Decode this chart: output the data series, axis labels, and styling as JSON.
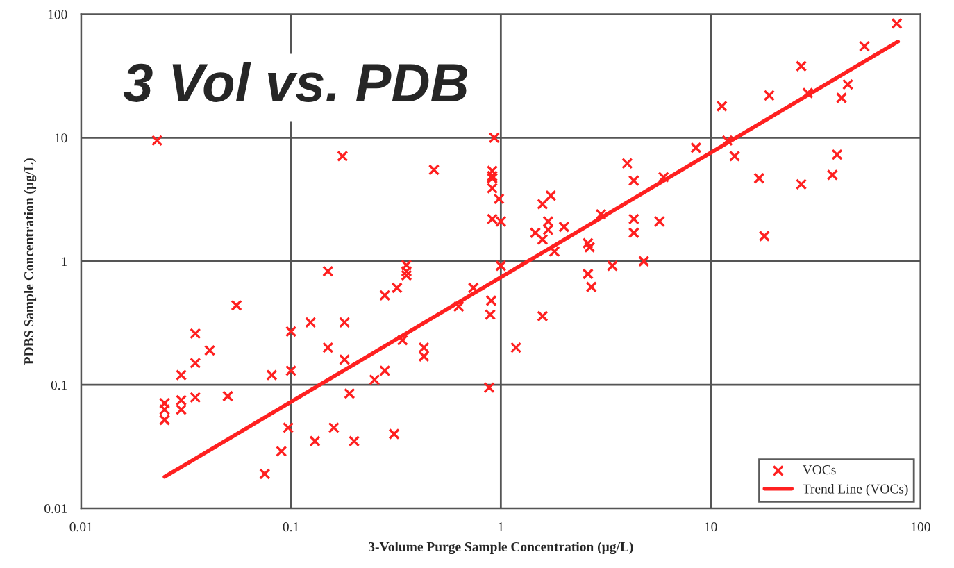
{
  "chart_data": {
    "type": "scatter",
    "title": "3 Vol vs. PDB",
    "xlabel": "3-Volume Purge Sample Concentration (µg/L)",
    "ylabel": "PDBS Sample Concentration (µg/L)",
    "log": "xy",
    "xlim": [
      0.01,
      100
    ],
    "ylim": [
      0.01,
      100
    ],
    "xticks": [
      0.01,
      0.1,
      1,
      10,
      100
    ],
    "yticks": [
      0.01,
      0.1,
      1,
      10,
      100
    ],
    "grid": true,
    "legend": "bottom right",
    "marker": "cross",
    "series": [
      {
        "name": "VOCs",
        "color": "#ff2020",
        "x": [
          0.025,
          0.025,
          0.025,
          0.03,
          0.03,
          0.035,
          0.035,
          0.035,
          0.03,
          0.041,
          0.055,
          0.05,
          0.081,
          0.1,
          0.1,
          0.097,
          0.09,
          0.075,
          0.023,
          0.93,
          0.176,
          0.48,
          0.91,
          0.91,
          0.91,
          0.91,
          0.98,
          0.91,
          1.0,
          0.15,
          0.355,
          0.355,
          0.355,
          0.32,
          0.28,
          0.74,
          0.63,
          0.9,
          0.89,
          0.124,
          0.18,
          0.15,
          0.18,
          0.34,
          0.43,
          0.43,
          0.28,
          0.25,
          0.19,
          0.88,
          0.16,
          0.13,
          0.2,
          0.31,
          1.0,
          1.58,
          1.73,
          1.68,
          1.68,
          1.46,
          1.58,
          2.0,
          1.8,
          2.6,
          2.65,
          4.0,
          4.3,
          4.3,
          4.3,
          5.7,
          3.4,
          4.8,
          2.6,
          2.7,
          1.58,
          1.18,
          8.5,
          3.0,
          5.96,
          77,
          54,
          27,
          45,
          42,
          19,
          29,
          11.3,
          12,
          13,
          17,
          27,
          40,
          38,
          18
        ],
        "values": [
          0.071,
          0.063,
          0.052,
          0.075,
          0.063,
          0.079,
          0.15,
          0.26,
          0.12,
          0.19,
          0.44,
          0.081,
          0.12,
          0.27,
          0.13,
          0.045,
          0.029,
          0.019,
          9.5,
          10,
          7.1,
          5.5,
          5.4,
          4.9,
          4.7,
          3.9,
          3.2,
          2.2,
          2.1,
          0.83,
          0.93,
          0.83,
          0.77,
          0.61,
          0.53,
          0.61,
          0.43,
          0.48,
          0.37,
          0.32,
          0.32,
          0.2,
          0.16,
          0.23,
          0.2,
          0.17,
          0.13,
          0.11,
          0.085,
          0.095,
          0.045,
          0.035,
          0.035,
          0.04,
          0.92,
          2.9,
          3.4,
          2.1,
          1.8,
          1.7,
          1.5,
          1.9,
          1.2,
          1.4,
          1.3,
          6.2,
          4.5,
          2.2,
          1.7,
          2.1,
          0.92,
          1.0,
          0.79,
          0.62,
          0.36,
          0.2,
          8.3,
          2.4,
          4.8,
          84,
          55,
          38,
          27,
          21,
          22,
          23,
          18,
          9.5,
          7.1,
          4.7,
          4.2,
          7.3,
          5.0,
          1.6
        ]
      },
      {
        "name": "Trend Line (VOCs)",
        "type": "line",
        "color": "#ff2020",
        "marker": "none",
        "line_style": "solid",
        "x": [
          0.025,
          78
        ],
        "values": [
          0.018,
          60
        ]
      }
    ]
  }
}
